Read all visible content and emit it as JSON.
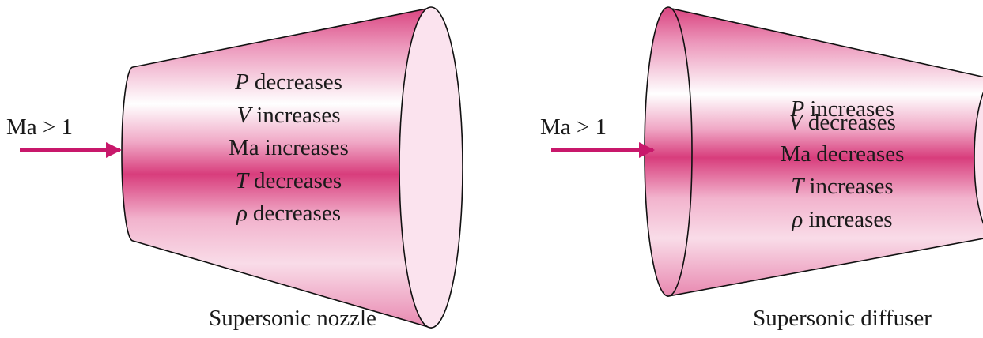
{
  "panels": [
    {
      "inlet_label": "Ma > 1",
      "properties": [
        {
          "symbol": "P",
          "change": "decreases"
        },
        {
          "symbol": "V",
          "change": "increases"
        },
        {
          "symbol": "Ma",
          "change": "increases"
        },
        {
          "symbol": "T",
          "change": "decreases"
        },
        {
          "symbol": "ρ",
          "change": "decreases"
        }
      ],
      "caption": "Supersonic nozzle"
    },
    {
      "inlet_label": "Ma > 1",
      "properties": [
        {
          "symbol": "P",
          "change": "increases"
        },
        {
          "symbol": "V",
          "change": "decreases"
        },
        {
          "symbol": "Ma",
          "change": "decreases"
        },
        {
          "symbol": "T",
          "change": "increases"
        },
        {
          "symbol": "ρ",
          "change": "increases"
        }
      ],
      "caption": "Supersonic diffuser"
    }
  ]
}
